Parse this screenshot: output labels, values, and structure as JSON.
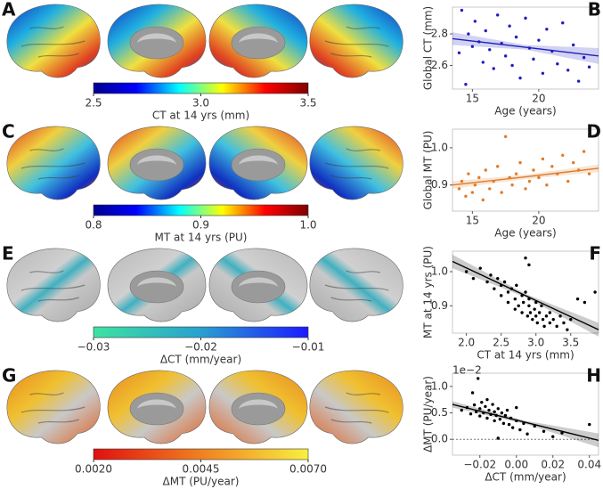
{
  "chart_data": [
    {
      "type": "colorbar",
      "label": "A",
      "xlabel": "CT at 14 yrs (mm)",
      "xlim": [
        2.5,
        3.5
      ],
      "xticks": [
        2.5,
        {
          "value": 3.0,
          "label": "3.0"
        },
        3.5
      ],
      "colormap": [
        "#00008f",
        "#0000ff",
        "#00ffff",
        "#ffff00",
        "#ff0000",
        "#800000"
      ]
    },
    {
      "type": "scatter",
      "label": "B",
      "xlabel": "Age (years)",
      "ylabel": "Global CT (mm)",
      "color": "#1f1fbf",
      "xlim": [
        13.5,
        24.5
      ],
      "xticks": [
        15,
        20
      ],
      "ylim": [
        2.45,
        2.97
      ],
      "yticks": [
        2.6,
        2.8
      ],
      "x": [
        14.0,
        14.2,
        14.5,
        14.7,
        15.0,
        15.2,
        15.5,
        15.8,
        16.0,
        16.3,
        16.6,
        16.9,
        17.2,
        17.5,
        17.8,
        18.0,
        18.3,
        18.6,
        19.0,
        19.3,
        19.6,
        20.0,
        20.3,
        20.6,
        21.0,
        21.4,
        21.8,
        22.2,
        22.6,
        23.0,
        23.4,
        23.8
      ],
      "y": [
        2.68,
        2.95,
        2.48,
        2.8,
        2.72,
        2.88,
        2.75,
        2.62,
        2.82,
        2.7,
        2.58,
        2.92,
        2.74,
        2.66,
        2.85,
        2.6,
        2.78,
        2.52,
        2.9,
        2.71,
        2.64,
        2.76,
        2.55,
        2.83,
        2.69,
        2.61,
        2.87,
        2.57,
        2.73,
        2.5,
        2.65,
        2.59
      ],
      "fit": {
        "x": [
          13.5,
          19,
          24.5
        ],
        "y": [
          2.77,
          2.715,
          2.66
        ],
        "lower": [
          2.73,
          2.7,
          2.61
        ],
        "upper": [
          2.81,
          2.73,
          2.71
        ]
      }
    },
    {
      "type": "colorbar",
      "label": "C",
      "xlabel": "MT at 14 yrs (PU)",
      "xlim": [
        0.8,
        1.0
      ],
      "xticks": [
        0.8,
        0.9,
        {
          "value": 1.0,
          "label": "1.0"
        }
      ],
      "colormap": [
        "#00008f",
        "#0000ff",
        "#00ffff",
        "#ffff00",
        "#ff0000",
        "#800000"
      ]
    },
    {
      "type": "scatter",
      "label": "D",
      "xlabel": "Age (years)",
      "ylabel": "Global MT (PU)",
      "color": "#e07b2a",
      "xlim": [
        13.5,
        24.5
      ],
      "xticks": [
        15,
        20
      ],
      "ylim": [
        0.83,
        1.05
      ],
      "yticks": [
        0.9,
        {
          "value": 1.0,
          "label": "1.0"
        }
      ],
      "x": [
        14.0,
        14.2,
        14.5,
        14.7,
        15.0,
        15.2,
        15.5,
        15.8,
        16.0,
        16.3,
        16.6,
        16.9,
        17.2,
        17.5,
        17.8,
        18.0,
        18.3,
        18.6,
        19.0,
        19.3,
        19.6,
        20.0,
        20.3,
        20.6,
        21.0,
        21.4,
        21.8,
        22.2,
        22.6,
        23.0,
        23.4,
        23.8
      ],
      "y": [
        0.89,
        0.91,
        0.87,
        0.93,
        0.88,
        0.9,
        0.92,
        0.86,
        0.94,
        0.89,
        0.91,
        0.95,
        0.88,
        1.03,
        0.92,
        0.9,
        0.93,
        0.96,
        0.89,
        0.91,
        0.94,
        0.92,
        0.97,
        0.9,
        0.95,
        0.93,
        0.98,
        0.91,
        0.96,
        0.94,
        0.99,
        0.93
      ],
      "fit": {
        "x": [
          13.5,
          19,
          24.5
        ],
        "y": [
          0.9,
          0.922,
          0.945
        ],
        "lower": [
          0.89,
          0.916,
          0.935
        ],
        "upper": [
          0.91,
          0.928,
          0.955
        ]
      }
    },
    {
      "type": "colorbar",
      "label": "E",
      "xlabel": "ΔCT (mm/year)",
      "xlim": [
        -0.03,
        -0.01
      ],
      "xticks": [
        {
          "value": -0.03,
          "label": "−0.03"
        },
        {
          "value": -0.02,
          "label": "−0.02"
        },
        {
          "value": -0.01,
          "label": "−0.01"
        }
      ],
      "colormap": [
        "#3de3a0",
        "#2aa0d0",
        "#1a1aff"
      ]
    },
    {
      "type": "scatter",
      "label": "F",
      "xlabel": "CT at 14 yrs (mm)",
      "ylabel": "MT at 14 yrs (PU)",
      "color": "#000000",
      "xlim": [
        1.8,
        3.9
      ],
      "xticks": [
        {
          "value": 2.0,
          "label": "2.0"
        },
        2.5,
        {
          "value": 3.0,
          "label": "3.0"
        },
        3.5
      ],
      "ylim": [
        0.82,
        1.06
      ],
      "yticks": [
        0.9,
        {
          "value": 1.0,
          "label": "1.0"
        }
      ],
      "x": [
        2.0,
        2.1,
        2.2,
        2.3,
        2.35,
        2.4,
        2.45,
        2.5,
        2.5,
        2.55,
        2.6,
        2.6,
        2.65,
        2.7,
        2.7,
        2.72,
        2.75,
        2.8,
        2.8,
        2.82,
        2.85,
        2.88,
        2.9,
        2.9,
        2.92,
        2.95,
        2.98,
        3.0,
        3.0,
        3.02,
        3.05,
        3.08,
        3.1,
        3.12,
        3.15,
        3.2,
        3.2,
        3.25,
        3.3,
        3.35,
        3.4,
        3.45,
        3.5,
        3.6,
        3.7,
        2.85,
        2.9,
        3.85
      ],
      "y": [
        1.0,
        0.98,
        1.01,
        0.97,
        0.99,
        0.95,
        0.98,
        0.96,
        0.93,
        0.97,
        0.94,
        0.91,
        0.95,
        0.92,
        0.89,
        0.96,
        0.9,
        0.93,
        0.88,
        0.91,
        0.94,
        0.87,
        0.9,
        0.92,
        0.88,
        0.86,
        0.89,
        0.91,
        0.87,
        0.85,
        0.88,
        0.9,
        0.86,
        0.84,
        0.87,
        0.85,
        0.88,
        0.86,
        0.84,
        0.87,
        0.85,
        0.83,
        0.86,
        0.92,
        0.91,
        1.04,
        1.02,
        0.94
      ],
      "fit": {
        "x": [
          1.8,
          2.85,
          3.9
        ],
        "y": [
          1.03,
          0.93,
          0.83
        ],
        "lower": [
          1.01,
          0.925,
          0.81
        ],
        "upper": [
          1.05,
          0.935,
          0.85
        ]
      }
    },
    {
      "type": "colorbar",
      "label": "G",
      "xlabel": "ΔMT (PU/year)",
      "xlim": [
        0.002,
        0.007
      ],
      "xticks": [
        {
          "value": 0.002,
          "label": "0.0020"
        },
        {
          "value": 0.0045,
          "label": "0.0045"
        },
        {
          "value": 0.007,
          "label": "0.0070"
        }
      ],
      "colormap": [
        "#e01010",
        "#f08020",
        "#f8f040"
      ]
    },
    {
      "type": "scatter",
      "label": "H",
      "xlabel": "ΔCT (mm/year)",
      "ylabel": "ΔMT (PU/year)",
      "color": "#000000",
      "offset_label": "1e−2",
      "reference_line": 0,
      "xlim": [
        -0.035,
        0.045
      ],
      "xticks": [
        {
          "value": -0.02,
          "label": "−0.02"
        },
        {
          "value": 0,
          "label": "0.00"
        },
        {
          "value": 0.02,
          "label": "0.02"
        },
        {
          "value": 0.04,
          "label": "0.04"
        }
      ],
      "ylim": [
        -0.3,
        1.25
      ],
      "yticks": [
        {
          "value": 0,
          "label": "0.0"
        },
        0.5,
        {
          "value": 1,
          "label": "1.0"
        }
      ],
      "x": [
        -0.03,
        -0.027,
        -0.025,
        -0.023,
        -0.022,
        -0.02,
        -0.02,
        -0.019,
        -0.018,
        -0.017,
        -0.016,
        -0.015,
        -0.014,
        -0.013,
        -0.012,
        -0.012,
        -0.011,
        -0.01,
        -0.009,
        -0.008,
        -0.007,
        -0.006,
        -0.005,
        -0.004,
        -0.003,
        -0.002,
        0.0,
        0.002,
        0.004,
        0.006,
        0.01,
        0.015,
        0.02,
        0.025,
        0.04,
        -0.021,
        -0.024,
        -0.016,
        -0.01,
        0.0
      ],
      "y": [
        0.55,
        0.6,
        0.48,
        0.65,
        0.52,
        0.58,
        0.44,
        0.7,
        0.5,
        0.62,
        0.4,
        0.55,
        0.47,
        0.66,
        0.35,
        0.52,
        0.45,
        0.58,
        0.38,
        0.5,
        0.3,
        0.45,
        0.55,
        0.28,
        0.4,
        0.22,
        0.35,
        0.18,
        0.3,
        0.1,
        0.25,
        0.15,
        0.05,
        0.12,
        0.28,
        1.15,
        0.88,
        0.75,
        0.02,
        0.6
      ],
      "fit": {
        "x": [
          -0.035,
          0.005,
          0.045
        ],
        "y": [
          0.66,
          0.32,
          -0.02
        ],
        "lower": [
          0.6,
          0.29,
          -0.15
        ],
        "upper": [
          0.72,
          0.35,
          0.11
        ]
      }
    }
  ]
}
